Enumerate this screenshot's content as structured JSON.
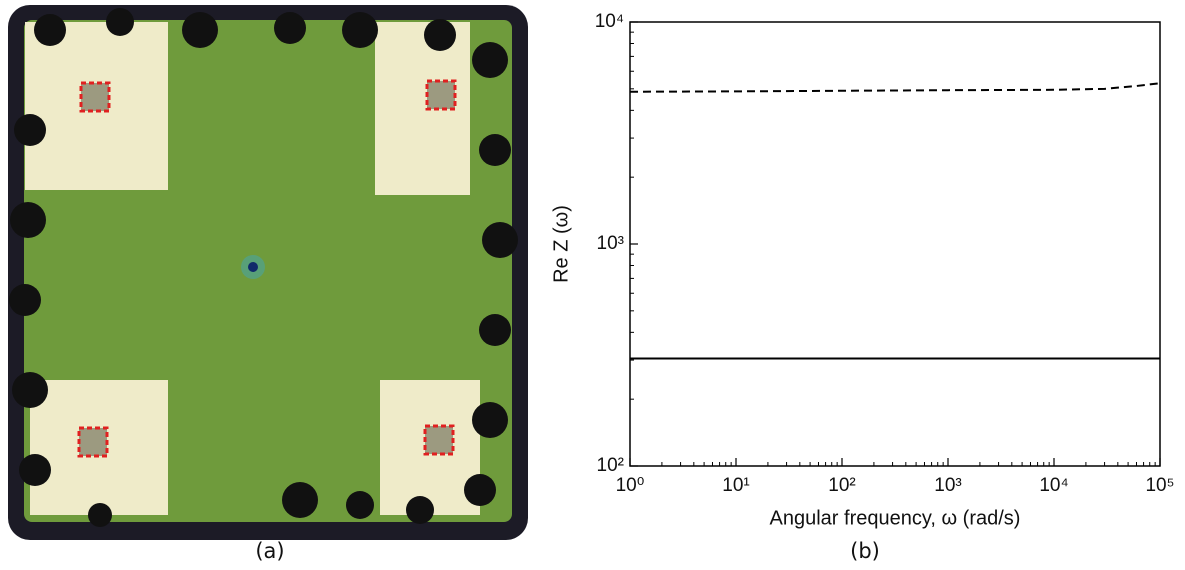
{
  "captions": [
    "(a)",
    "(b)"
  ],
  "chart_data": {
    "type": "line",
    "xlabel": "Angular frequency, ω (rad/s)",
    "ylabel": "Re Z (ω)",
    "xscale": "log",
    "yscale": "log",
    "xlim": [
      1,
      100000
    ],
    "ylim": [
      100,
      10000
    ],
    "xticks": [
      {
        "value": 1,
        "label": "10⁰"
      },
      {
        "value": 10,
        "label": "10¹"
      },
      {
        "value": 100,
        "label": "10²"
      },
      {
        "value": 1000,
        "label": "10³"
      },
      {
        "value": 10000,
        "label": "10⁴"
      },
      {
        "value": 100000,
        "label": "10⁵"
      }
    ],
    "yticks": [
      {
        "value": 100,
        "label": "10²"
      },
      {
        "value": 1000,
        "label": "10³"
      },
      {
        "value": 10000,
        "label": "10⁴"
      }
    ],
    "x": [
      1,
      10,
      100,
      1000,
      10000,
      30000,
      60000,
      100000
    ],
    "series": [
      {
        "color": "#000000",
        "linestyle": "dashed",
        "values": [
          4850,
          4870,
          4900,
          4930,
          4950,
          5000,
          5150,
          5300
        ]
      },
      {
        "color": "#000000",
        "linestyle": "solid",
        "values": [
          305,
          305,
          305,
          305,
          305,
          305,
          305,
          305
        ]
      }
    ]
  }
}
